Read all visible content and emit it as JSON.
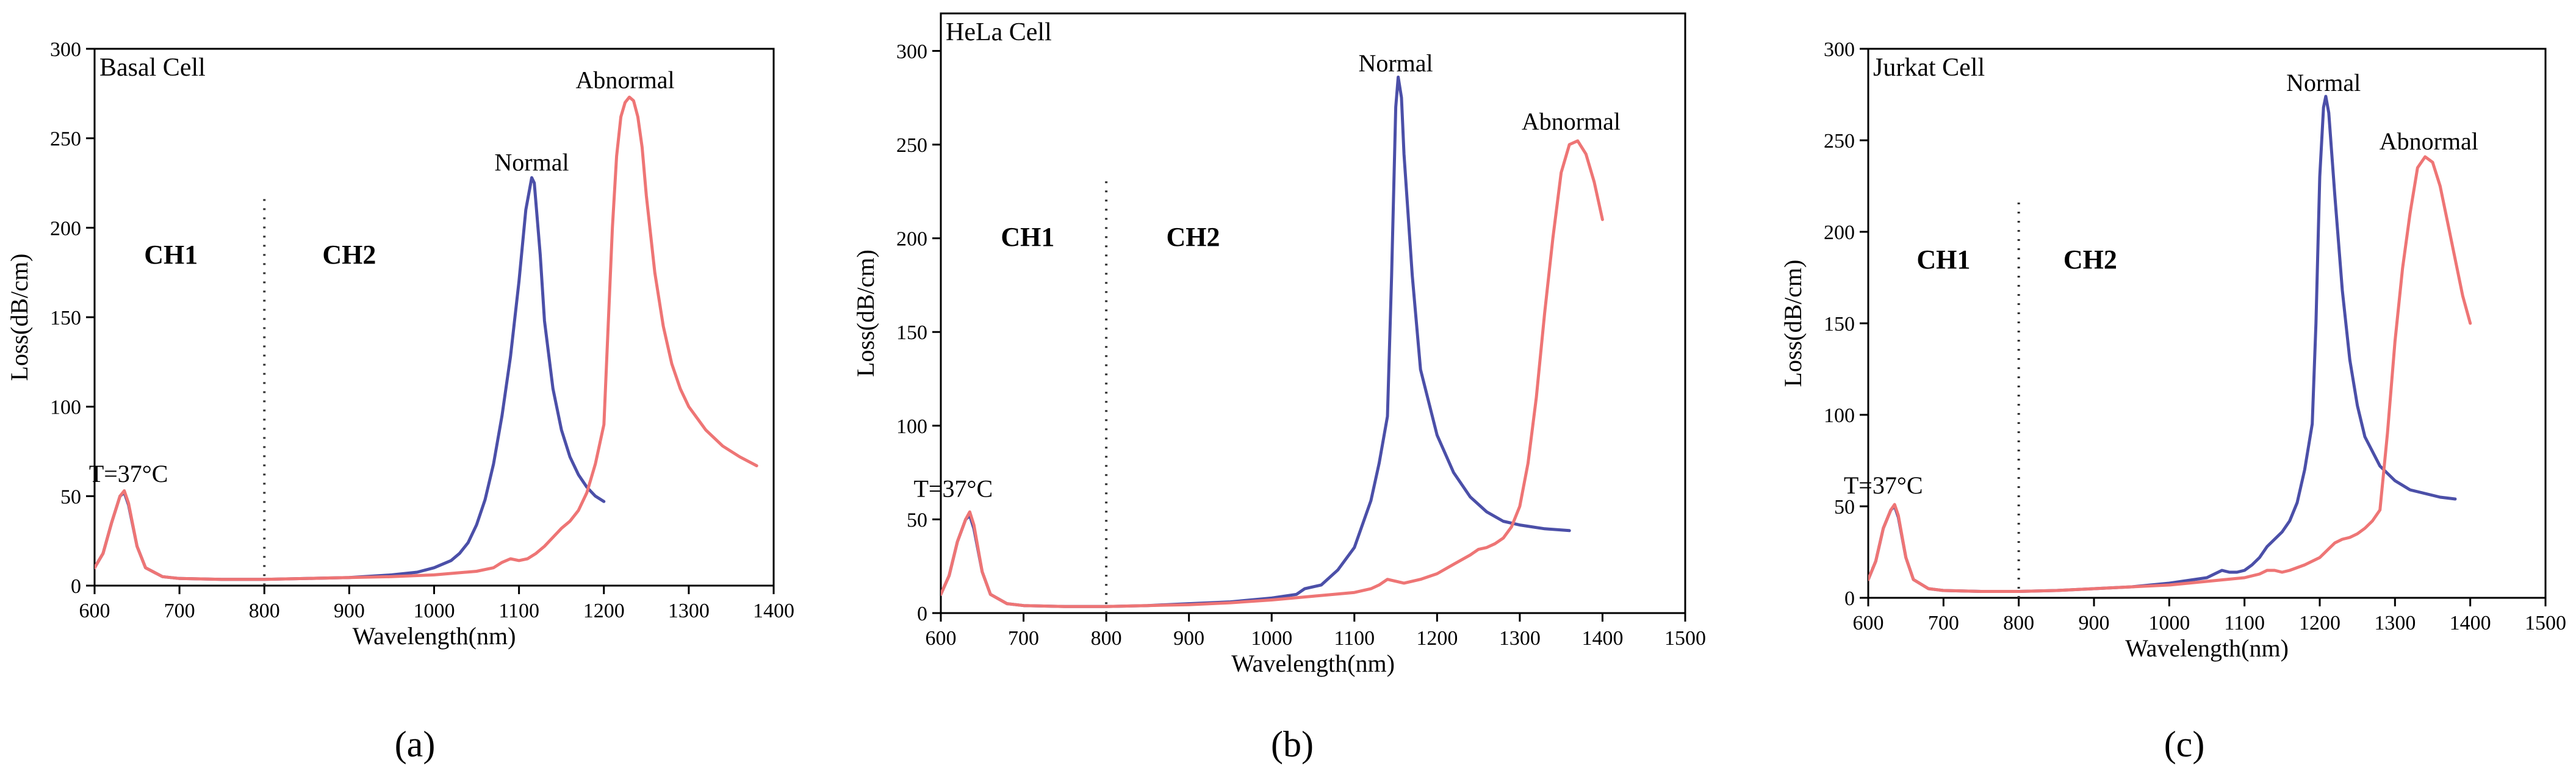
{
  "chart_data": [
    {
      "type": "line",
      "title": "Basal Cell",
      "caption": "(a)",
      "xlabel": "Wavelength(nm)",
      "ylabel": "Loss(dB/cm)",
      "xlim": [
        600,
        1400
      ],
      "ylim": [
        0,
        300
      ],
      "xticks": [
        600,
        700,
        800,
        900,
        1000,
        1100,
        1200,
        1300,
        1400
      ],
      "yticks": [
        0,
        50,
        100,
        150,
        200,
        250,
        300
      ],
      "divider_x": 800,
      "channel_labels": [
        {
          "text": "CH1",
          "x": 690,
          "y": 180
        },
        {
          "text": "CH2",
          "x": 900,
          "y": 180
        }
      ],
      "temperature_label": {
        "text": "T=37°C",
        "x": 640,
        "y": 58
      },
      "series": [
        {
          "name": "Normal",
          "color": "#4b4fa8",
          "label_pos": {
            "x": 1115,
            "y": 232
          },
          "x": [
            600,
            610,
            620,
            630,
            635,
            640,
            650,
            660,
            680,
            700,
            750,
            800,
            850,
            900,
            950,
            980,
            1000,
            1010,
            1020,
            1030,
            1040,
            1050,
            1060,
            1070,
            1080,
            1090,
            1100,
            1108,
            1115,
            1118,
            1125,
            1130,
            1140,
            1150,
            1160,
            1170,
            1180,
            1190,
            1200
          ],
          "values": [
            10,
            18,
            35,
            50,
            52,
            45,
            22,
            10,
            5,
            4,
            3.5,
            3.5,
            4,
            4.5,
            6,
            7.5,
            10,
            12,
            14,
            18,
            24,
            34,
            48,
            68,
            95,
            128,
            170,
            210,
            228,
            225,
            185,
            148,
            110,
            87,
            72,
            62,
            55,
            50,
            47
          ]
        },
        {
          "name": "Abnormal",
          "color": "#ee7575",
          "label_pos": {
            "x": 1225,
            "y": 278
          },
          "x": [
            600,
            610,
            620,
            630,
            635,
            640,
            650,
            660,
            680,
            700,
            750,
            800,
            850,
            900,
            950,
            1000,
            1050,
            1070,
            1080,
            1090,
            1100,
            1110,
            1120,
            1130,
            1140,
            1150,
            1160,
            1170,
            1180,
            1190,
            1200,
            1210,
            1215,
            1220,
            1225,
            1230,
            1235,
            1240,
            1245,
            1250,
            1260,
            1270,
            1280,
            1290,
            1300,
            1320,
            1340,
            1360,
            1380
          ],
          "values": [
            10,
            18,
            35,
            50,
            53,
            46,
            22,
            10,
            5,
            4,
            3.5,
            3.5,
            4,
            4.5,
            5,
            6,
            8,
            10,
            13,
            15,
            14,
            15,
            18,
            22,
            27,
            32,
            36,
            42,
            52,
            68,
            90,
            200,
            240,
            262,
            270,
            273,
            271,
            262,
            245,
            218,
            175,
            145,
            124,
            110,
            100,
            87,
            78,
            72,
            67
          ]
        }
      ]
    },
    {
      "type": "line",
      "title": "HeLa Cell",
      "caption": "(b)",
      "xlabel": "Wavelength(nm)",
      "ylabel": "Loss(dB/cm)",
      "xlim": [
        600,
        1500
      ],
      "ylim": [
        0,
        320
      ],
      "xticks": [
        600,
        700,
        800,
        900,
        1000,
        1100,
        1200,
        1300,
        1400,
        1500
      ],
      "yticks": [
        0,
        50,
        100,
        150,
        200,
        250,
        300
      ],
      "divider_x": 800,
      "channel_labels": [
        {
          "text": "CH1",
          "x": 705,
          "y": 196
        },
        {
          "text": "CH2",
          "x": 905,
          "y": 196
        }
      ],
      "temperature_label": {
        "text": "T=37°C",
        "x": 615,
        "y": 62
      },
      "series": [
        {
          "name": "Normal",
          "color": "#4b4fa8",
          "label_pos": {
            "x": 1150,
            "y": 289
          },
          "x": [
            600,
            610,
            620,
            630,
            635,
            640,
            650,
            660,
            680,
            700,
            750,
            800,
            850,
            900,
            950,
            1000,
            1030,
            1040,
            1060,
            1080,
            1100,
            1120,
            1130,
            1140,
            1145,
            1150,
            1153,
            1157,
            1160,
            1170,
            1180,
            1200,
            1220,
            1240,
            1260,
            1280,
            1300,
            1330,
            1360
          ],
          "values": [
            10,
            20,
            38,
            50,
            52,
            45,
            22,
            10,
            5,
            4,
            3.5,
            3.5,
            4,
            5,
            6,
            8,
            10,
            13,
            15,
            23,
            35,
            60,
            80,
            105,
            180,
            270,
            286,
            275,
            245,
            180,
            130,
            95,
            75,
            62,
            54,
            49,
            47,
            45,
            44
          ]
        },
        {
          "name": "Abnormal",
          "color": "#ee7575",
          "label_pos": {
            "x": 1362,
            "y": 258
          },
          "x": [
            600,
            610,
            620,
            630,
            635,
            640,
            650,
            660,
            680,
            700,
            750,
            800,
            850,
            900,
            950,
            1000,
            1050,
            1100,
            1120,
            1130,
            1140,
            1150,
            1160,
            1170,
            1180,
            1200,
            1220,
            1240,
            1250,
            1260,
            1270,
            1280,
            1290,
            1300,
            1310,
            1320,
            1330,
            1340,
            1350,
            1360,
            1370,
            1380,
            1390,
            1400
          ],
          "values": [
            10,
            20,
            38,
            50,
            54,
            47,
            22,
            10,
            5,
            4,
            3.5,
            3.5,
            4,
            4.5,
            5.5,
            7,
            9,
            11,
            13,
            15,
            18,
            17,
            16,
            17,
            18,
            21,
            26,
            31,
            34,
            35,
            37,
            40,
            46,
            57,
            80,
            115,
            160,
            200,
            235,
            250,
            252,
            245,
            230,
            210
          ]
        }
      ]
    },
    {
      "type": "line",
      "title": "Jurkat Cell",
      "caption": "(c)",
      "xlabel": "Wavelength(nm)",
      "ylabel": "Loss(dB/cm)",
      "xlim": [
        600,
        1500
      ],
      "ylim": [
        0,
        300
      ],
      "xticks": [
        600,
        700,
        800,
        900,
        1000,
        1100,
        1200,
        1300,
        1400,
        1500
      ],
      "yticks": [
        0,
        50,
        100,
        150,
        200,
        250,
        300
      ],
      "divider_x": 800,
      "channel_labels": [
        {
          "text": "CH1",
          "x": 700,
          "y": 180
        },
        {
          "text": "CH2",
          "x": 895,
          "y": 180
        }
      ],
      "temperature_label": {
        "text": "T=37°C",
        "x": 620,
        "y": 57
      },
      "series": [
        {
          "name": "Normal",
          "color": "#4b4fa8",
          "label_pos": {
            "x": 1205,
            "y": 277
          },
          "x": [
            600,
            610,
            620,
            630,
            635,
            640,
            650,
            660,
            680,
            700,
            750,
            800,
            850,
            900,
            950,
            1000,
            1050,
            1060,
            1070,
            1080,
            1090,
            1100,
            1110,
            1120,
            1130,
            1140,
            1150,
            1160,
            1170,
            1180,
            1190,
            1195,
            1200,
            1205,
            1208,
            1212,
            1220,
            1230,
            1240,
            1250,
            1260,
            1280,
            1300,
            1320,
            1340,
            1360,
            1380
          ],
          "values": [
            10,
            20,
            38,
            48,
            50,
            44,
            22,
            10,
            5,
            4,
            3.5,
            3.5,
            4,
            5,
            6,
            8,
            11,
            13,
            15,
            14,
            14,
            15,
            18,
            22,
            28,
            32,
            36,
            42,
            52,
            70,
            95,
            150,
            230,
            268,
            274,
            265,
            220,
            168,
            130,
            105,
            88,
            72,
            64,
            59,
            57,
            55,
            54
          ]
        },
        {
          "name": "Abnormal",
          "color": "#ee7575",
          "label_pos": {
            "x": 1345,
            "y": 245
          },
          "x": [
            600,
            610,
            620,
            630,
            635,
            640,
            650,
            660,
            680,
            700,
            750,
            800,
            850,
            900,
            950,
            1000,
            1050,
            1100,
            1120,
            1130,
            1140,
            1150,
            1160,
            1180,
            1200,
            1210,
            1220,
            1230,
            1240,
            1250,
            1260,
            1270,
            1280,
            1290,
            1300,
            1310,
            1320,
            1330,
            1340,
            1350,
            1360,
            1370,
            1380,
            1390,
            1400
          ],
          "values": [
            10,
            20,
            38,
            48,
            51,
            45,
            22,
            10,
            5,
            4,
            3.5,
            3.5,
            4,
            5,
            6,
            7,
            9,
            11,
            13,
            15,
            15,
            14,
            15,
            18,
            22,
            26,
            30,
            32,
            33,
            35,
            38,
            42,
            48,
            90,
            140,
            180,
            210,
            235,
            241,
            238,
            225,
            205,
            185,
            165,
            150
          ]
        }
      ]
    }
  ]
}
